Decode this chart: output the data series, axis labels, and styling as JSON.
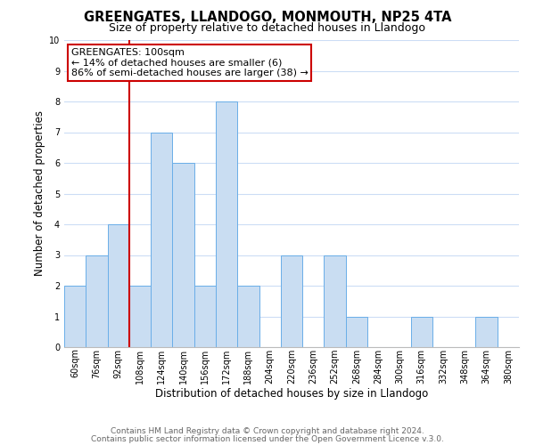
{
  "title": "GREENGATES, LLANDOGO, MONMOUTH, NP25 4TA",
  "subtitle": "Size of property relative to detached houses in Llandogo",
  "xlabel": "Distribution of detached houses by size in Llandogo",
  "ylabel": "Number of detached properties",
  "bin_labels": [
    "60sqm",
    "76sqm",
    "92sqm",
    "108sqm",
    "124sqm",
    "140sqm",
    "156sqm",
    "172sqm",
    "188sqm",
    "204sqm",
    "220sqm",
    "236sqm",
    "252sqm",
    "268sqm",
    "284sqm",
    "300sqm",
    "316sqm",
    "332sqm",
    "348sqm",
    "364sqm",
    "380sqm"
  ],
  "bar_values": [
    2,
    3,
    4,
    2,
    7,
    6,
    2,
    8,
    2,
    0,
    3,
    0,
    3,
    1,
    0,
    0,
    1,
    0,
    0,
    1,
    0
  ],
  "bar_color": "#c9ddf2",
  "bar_edge_color": "#6aaee8",
  "grid_color": "#ccddf5",
  "vline_color": "#cc0000",
  "vline_x_index": 3,
  "annotation_title": "GREENGATES: 100sqm",
  "annotation_line1": "← 14% of detached houses are smaller (6)",
  "annotation_line2": "86% of semi-detached houses are larger (38) →",
  "annotation_box_color": "#ffffff",
  "annotation_box_edge_color": "#cc0000",
  "ylim": [
    0,
    10
  ],
  "yticks": [
    0,
    1,
    2,
    3,
    4,
    5,
    6,
    7,
    8,
    9,
    10
  ],
  "footer1": "Contains HM Land Registry data © Crown copyright and database right 2024.",
  "footer2": "Contains public sector information licensed under the Open Government Licence v.3.0.",
  "title_fontsize": 10.5,
  "subtitle_fontsize": 9,
  "axis_label_fontsize": 8.5,
  "tick_fontsize": 7,
  "annotation_title_fontsize": 8,
  "annotation_body_fontsize": 8,
  "footer_fontsize": 6.5
}
